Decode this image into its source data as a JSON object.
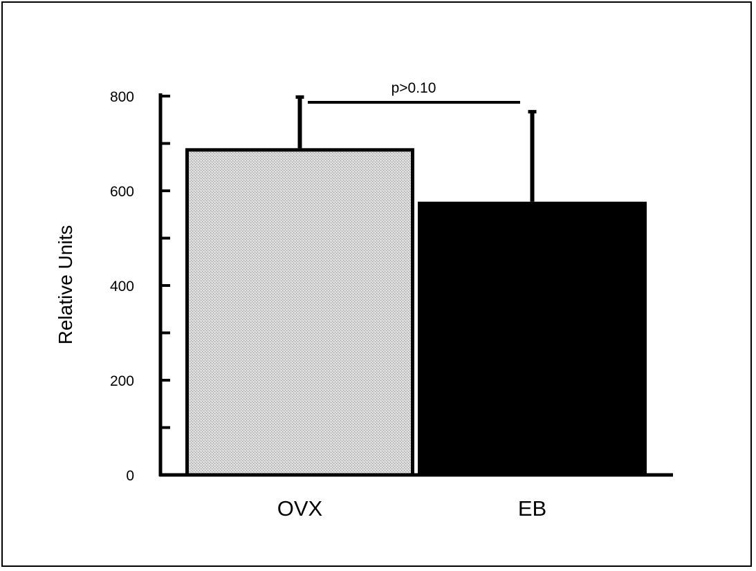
{
  "chart_data": {
    "type": "bar",
    "title": "",
    "xlabel": "",
    "ylabel": "Relative Units",
    "ylim": [
      0,
      800
    ],
    "yticks": [
      0,
      200,
      400,
      600,
      800
    ],
    "minor_ticks": [
      100,
      300,
      500,
      700
    ],
    "categories": [
      "OVX",
      "EB"
    ],
    "values": [
      690,
      577
    ],
    "error_upper": [
      798,
      767
    ],
    "bar_fills": [
      "#c4c4c4",
      "#000000"
    ],
    "annotation": {
      "text": "p>0.10"
    },
    "grid": false,
    "legend": "none"
  }
}
